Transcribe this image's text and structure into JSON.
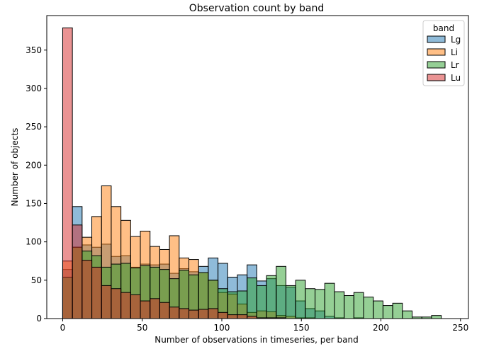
{
  "chart_data": {
    "type": "bar",
    "title": "Observation count by band",
    "xlabel": "Number of observations in timeseries, per band",
    "ylabel": "Number of objects",
    "xlim": [
      -10,
      255
    ],
    "ylim": [
      0,
      395
    ],
    "xticks": [
      0,
      50,
      100,
      150,
      200,
      250
    ],
    "yticks": [
      0,
      50,
      100,
      150,
      200,
      250,
      300,
      350
    ],
    "bin_start": 0,
    "bin_width": 6.1,
    "legend": {
      "title": "band",
      "placement": "top-right"
    },
    "series": [
      {
        "name": "Lg",
        "color": "#1f77b4",
        "values": [
          64,
          146,
          96,
          93,
          97,
          81,
          82,
          67,
          71,
          70,
          71,
          59,
          65,
          61,
          68,
          79,
          72,
          54,
          57,
          70,
          49,
          52,
          43,
          41,
          23,
          13,
          10,
          3,
          1,
          0,
          1,
          0,
          0,
          0,
          0,
          0,
          0,
          0,
          0
        ]
      },
      {
        "name": "Li",
        "color": "#ff7f0e",
        "values": [
          75,
          93,
          106,
          133,
          173,
          146,
          128,
          107,
          114,
          94,
          90,
          108,
          79,
          77,
          60,
          50,
          34,
          32,
          19,
          8,
          10,
          9,
          4,
          3,
          1,
          1,
          0,
          0,
          0,
          0,
          0,
          0,
          0,
          0,
          0,
          0,
          0,
          0,
          0
        ]
      },
      {
        "name": "Lr",
        "color": "#2ca02c",
        "values": [
          54,
          93,
          88,
          82,
          67,
          71,
          72,
          66,
          69,
          67,
          64,
          52,
          63,
          57,
          60,
          50,
          39,
          35,
          36,
          53,
          43,
          56,
          68,
          43,
          50,
          39,
          38,
          46,
          35,
          30,
          34,
          28,
          23,
          17,
          20,
          10,
          2,
          2,
          4
        ]
      },
      {
        "name": "Lu",
        "color": "#d62728",
        "values": [
          379,
          122,
          76,
          67,
          43,
          39,
          34,
          31,
          23,
          26,
          21,
          15,
          13,
          11,
          12,
          13,
          8,
          5,
          5,
          3,
          1,
          1,
          1,
          0,
          0,
          0,
          0,
          0,
          0,
          0,
          0,
          0,
          0,
          0,
          0,
          0,
          0,
          0,
          0
        ]
      }
    ]
  }
}
